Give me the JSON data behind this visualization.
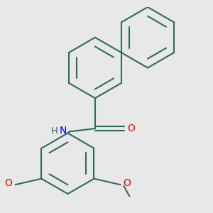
{
  "background_color": "#e8e8e8",
  "bond_color": "#2d6b5e",
  "N_color": "#0000ee",
  "O_color": "#ee0000",
  "figsize": [
    3.0,
    3.0
  ],
  "dpi": 100,
  "bond_lw": 1.5,
  "ring_r": 0.115,
  "xlim": [
    -0.2,
    1.1
  ],
  "ylim": [
    -0.15,
    1.1
  ]
}
